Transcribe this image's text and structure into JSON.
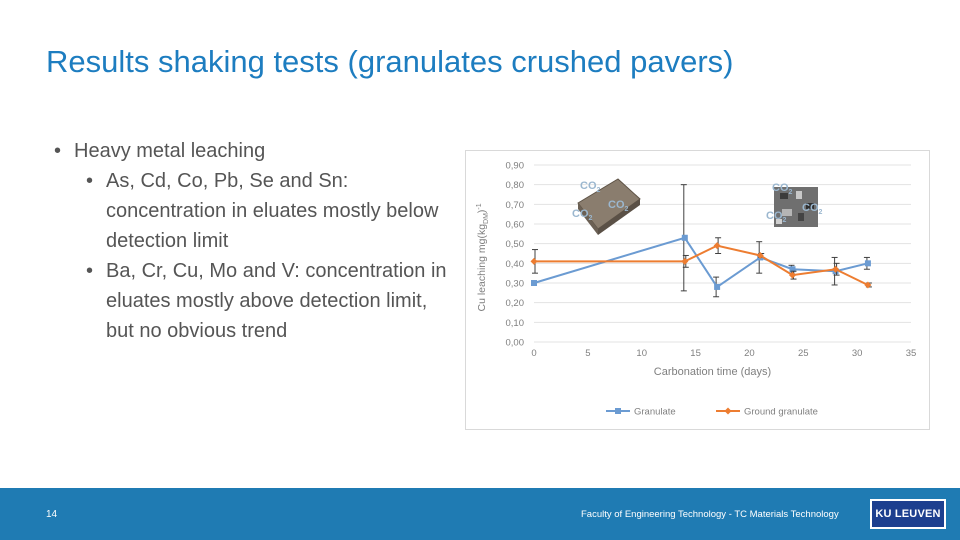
{
  "slide": {
    "title": "Results shaking tests (granulates crushed pavers)",
    "bullets": {
      "main": "Heavy metal leaching",
      "sub1": "As, Cd, Co, Pb, Se and Sn: concentration in eluates mostly below detection limit",
      "sub2": "Ba, Cr, Cu, Mo and V: concentration in eluates mostly above detection limit, but no obvious trend"
    },
    "page_number": "14",
    "footer_text": "Faculty of Engineering Technology - TC Materials Technology",
    "logo_text": "KU LEUVEN"
  },
  "thumbnails": {
    "left_labels": [
      "CO",
      "CO",
      "CO"
    ],
    "right_labels": [
      "CO",
      "CO",
      "CO"
    ]
  },
  "chart_data": {
    "type": "line",
    "xlabel": "Carbonation time (days)",
    "ylabel": "Cu leaching mg(kg",
    "ylabel_sub": "DM",
    "ylabel_end": ")",
    "ylabel_sup": "-1",
    "xlim": [
      0,
      35
    ],
    "ylim": [
      0,
      0.9
    ],
    "xticks": [
      "0",
      "5",
      "10",
      "15",
      "20",
      "25",
      "30",
      "35"
    ],
    "yticks": [
      "0,00",
      "0,10",
      "0,20",
      "0,30",
      "0,40",
      "0,50",
      "0,60",
      "0,70",
      "0,80",
      "0,90"
    ],
    "grid": true,
    "legend_position": "bottom",
    "series": [
      {
        "name": "Granulate",
        "color": "#6b9bd2",
        "marker": "square",
        "x": [
          0,
          14,
          17,
          21,
          24,
          28,
          31
        ],
        "y": [
          0.3,
          0.53,
          0.28,
          0.43,
          0.37,
          0.36,
          0.4
        ],
        "err": [
          0,
          0.27,
          0.05,
          0.08,
          0.02,
          0.07,
          0.03
        ]
      },
      {
        "name": "Ground granulate",
        "color": "#ed7d31",
        "marker": "diamond",
        "x": [
          0,
          14,
          17,
          21,
          24,
          28,
          31
        ],
        "y": [
          0.41,
          0.41,
          0.49,
          0.44,
          0.34,
          0.37,
          0.29
        ],
        "err": [
          0.06,
          0.03,
          0.04,
          0.01,
          0.02,
          0.03,
          0.01
        ]
      }
    ]
  }
}
